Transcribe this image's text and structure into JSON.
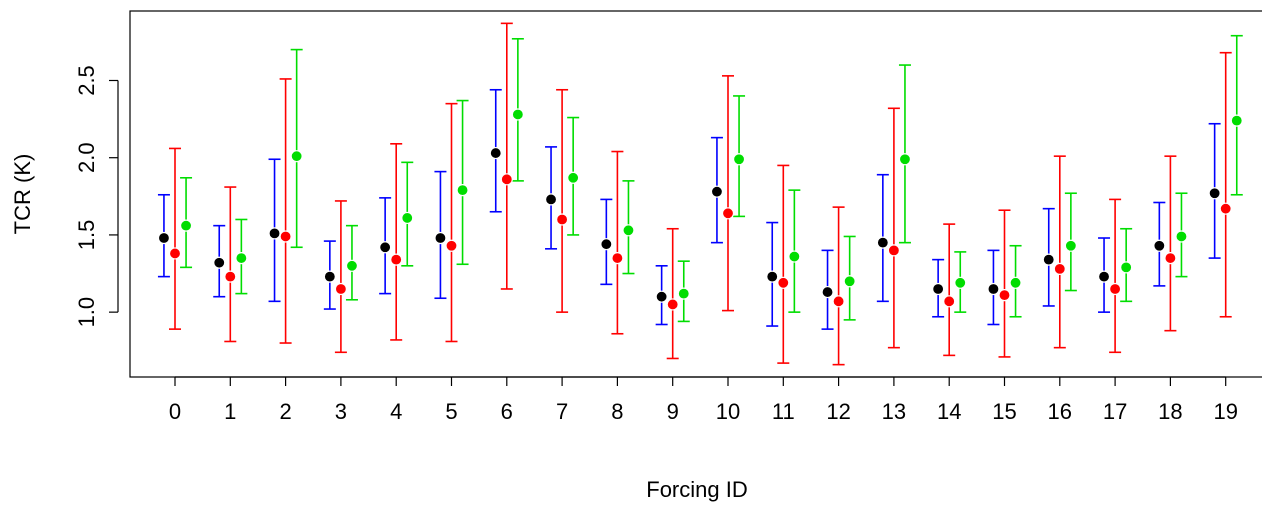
{
  "chart_data": {
    "type": "scatter",
    "title": "",
    "xlabel": "Forcing ID",
    "ylabel": "TCR (K)",
    "x_ticks": [
      "0",
      "1",
      "2",
      "3",
      "4",
      "5",
      "6",
      "7",
      "8",
      "9",
      "10",
      "11",
      "12",
      "13",
      "14",
      "15",
      "16",
      "17",
      "18",
      "19"
    ],
    "y_ticks": [
      "1.0",
      "1.5",
      "2.0",
      "2.5"
    ],
    "ylim": [
      0.58,
      2.95
    ],
    "grid": false,
    "legend": "none",
    "colors": {
      "black": "#000000",
      "red": "#ff0000",
      "green": "#00dd00",
      "blue": "#0000ff"
    },
    "series": [
      {
        "color": "#000000",
        "bar_color": "#0000ff",
        "offset": -0.2,
        "values": [
          1.48,
          1.32,
          1.51,
          1.23,
          1.42,
          1.48,
          2.03,
          1.73,
          1.44,
          1.1,
          1.78,
          1.23,
          1.13,
          1.45,
          1.15,
          1.15,
          1.34,
          1.23,
          1.43,
          1.77
        ],
        "lower": [
          1.23,
          1.1,
          1.07,
          1.02,
          1.12,
          1.09,
          1.65,
          1.41,
          1.18,
          0.92,
          1.45,
          0.91,
          0.89,
          1.07,
          0.97,
          0.92,
          1.04,
          1.0,
          1.17,
          1.35
        ],
        "upper": [
          1.76,
          1.56,
          1.99,
          1.46,
          1.74,
          1.91,
          2.44,
          2.07,
          1.73,
          1.3,
          2.13,
          1.58,
          1.4,
          1.89,
          1.34,
          1.4,
          1.67,
          1.48,
          1.71,
          2.22
        ]
      },
      {
        "color": "#ff0000",
        "bar_color": "#ff0000",
        "offset": 0.0,
        "values": [
          1.38,
          1.23,
          1.49,
          1.15,
          1.34,
          1.43,
          1.86,
          1.6,
          1.35,
          1.05,
          1.64,
          1.19,
          1.07,
          1.4,
          1.07,
          1.11,
          1.28,
          1.15,
          1.35,
          1.67
        ],
        "lower": [
          0.89,
          0.81,
          0.8,
          0.74,
          0.82,
          0.81,
          1.15,
          1.0,
          0.86,
          0.7,
          1.01,
          0.67,
          0.66,
          0.77,
          0.72,
          0.71,
          0.77,
          0.74,
          0.88,
          0.97
        ],
        "upper": [
          2.06,
          1.81,
          2.51,
          1.72,
          2.09,
          2.35,
          2.87,
          2.44,
          2.04,
          1.54,
          2.53,
          1.95,
          1.68,
          2.32,
          1.57,
          1.66,
          2.01,
          1.73,
          2.01,
          2.68
        ]
      },
      {
        "color": "#00dd00",
        "bar_color": "#00dd00",
        "offset": 0.2,
        "values": [
          1.56,
          1.35,
          2.01,
          1.3,
          1.61,
          1.79,
          2.28,
          1.87,
          1.53,
          1.12,
          1.99,
          1.36,
          1.2,
          1.99,
          1.19,
          1.19,
          1.43,
          1.29,
          1.49,
          2.24
        ],
        "lower": [
          1.29,
          1.12,
          1.42,
          1.08,
          1.3,
          1.31,
          1.85,
          1.5,
          1.25,
          0.94,
          1.62,
          1.0,
          0.95,
          1.45,
          1.0,
          0.97,
          1.14,
          1.07,
          1.23,
          1.76
        ],
        "upper": [
          1.87,
          1.6,
          2.7,
          1.56,
          1.97,
          2.37,
          2.77,
          2.26,
          1.85,
          1.33,
          2.4,
          1.79,
          1.49,
          2.6,
          1.39,
          1.43,
          1.77,
          1.54,
          1.77,
          2.79
        ]
      }
    ]
  }
}
